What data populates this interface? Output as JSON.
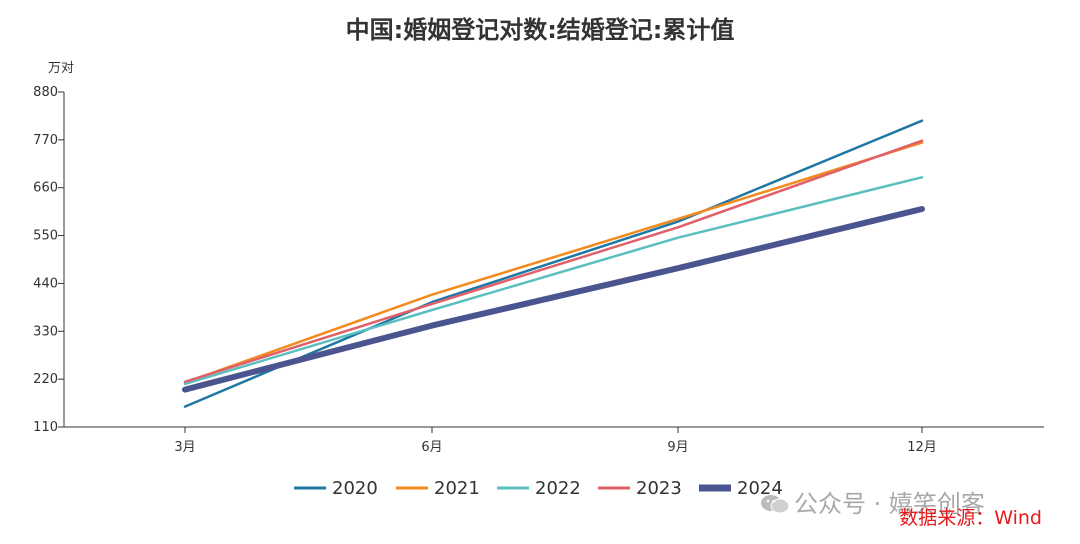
{
  "chart_data": {
    "type": "line",
    "title": "中国:婚姻登记对数:结婚登记:累计值",
    "unit_label": "万对",
    "categories": [
      "3月",
      "6月",
      "9月",
      "12月"
    ],
    "ylim": [
      110,
      880
    ],
    "yticks": [
      "880",
      "770",
      "660",
      "550",
      "440",
      "330",
      "220",
      "110"
    ],
    "series": [
      {
        "name": "2020",
        "values": [
          157,
          397,
          582,
          814
        ],
        "color": "#1f77a4",
        "width": 2.5
      },
      {
        "name": "2021",
        "values": [
          212,
          414,
          588,
          764
        ],
        "color": "#f28a1e",
        "width": 2.5
      },
      {
        "name": "2022",
        "values": [
          209,
          379,
          545,
          684
        ],
        "color": "#5bbfc0",
        "width": 2.5
      },
      {
        "name": "2023",
        "values": [
          214,
          393,
          569,
          768
        ],
        "color": "#e0606a",
        "width": 2.5
      },
      {
        "name": "2024",
        "values": [
          196,
          343,
          475,
          611
        ],
        "color": "#4a5590",
        "width": 6
      }
    ],
    "legend_position": "bottom",
    "grid": false
  },
  "source_text": "数据来源：Wind",
  "watermark_text": "公众号 · 嬉笑创客"
}
